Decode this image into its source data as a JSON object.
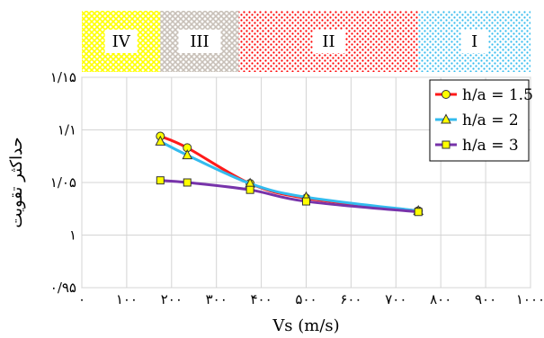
{
  "chart_data": {
    "type": "line",
    "title": "",
    "xlabel": "Vs (m/s)",
    "ylabel": "حداکثر تقویت",
    "xlim": [
      0,
      1000
    ],
    "ylim": [
      0.95,
      1.15
    ],
    "x_tick_values": [
      0,
      100,
      200,
      300,
      400,
      500,
      600,
      700,
      800,
      900,
      1000
    ],
    "x_tick_labels": [
      "۰",
      "۱۰۰",
      "۲۰۰",
      "۳۰۰",
      "۴۰۰",
      "۵۰۰",
      "۶۰۰",
      "۷۰۰",
      "۸۰۰",
      "۹۰۰",
      "۱۰۰۰"
    ],
    "y_tick_values": [
      0.95,
      1.0,
      1.05,
      1.1,
      1.15
    ],
    "y_tick_labels": [
      "۰/۹۵",
      "۱",
      "۱/۰۵",
      "۱/۱",
      "۱/۱۵"
    ],
    "grid": true,
    "legend_position": "top-right",
    "zones": [
      {
        "label": "IV",
        "x_range": [
          0,
          175
        ],
        "color": "#ffff00",
        "pattern": "crosshatch"
      },
      {
        "label": "III",
        "x_range": [
          175,
          350
        ],
        "color": "#c8c0b8",
        "pattern": "crosshatch"
      },
      {
        "label": "II",
        "x_range": [
          350,
          750
        ],
        "color": "#ff0000",
        "pattern": "dots"
      },
      {
        "label": "I",
        "x_range": [
          750,
          1000
        ],
        "color": "#33bbee",
        "pattern": "dots"
      }
    ],
    "series": [
      {
        "name": "h/a = 1.5",
        "color": "#ff1a1a",
        "marker": "circle",
        "x": [
          175,
          235,
          375,
          500,
          750
        ],
        "y": [
          1.094,
          1.083,
          1.049,
          1.035,
          1.023
        ]
      },
      {
        "name": "h/a = 2",
        "color": "#33bbee",
        "marker": "triangle",
        "x": [
          175,
          235,
          375,
          500,
          750
        ],
        "y": [
          1.089,
          1.076,
          1.049,
          1.036,
          1.023
        ]
      },
      {
        "name": "h/a = 3",
        "color": "#7733aa",
        "marker": "square",
        "x": [
          175,
          235,
          375,
          500,
          750
        ],
        "y": [
          1.052,
          1.05,
          1.043,
          1.032,
          1.022
        ]
      }
    ]
  }
}
